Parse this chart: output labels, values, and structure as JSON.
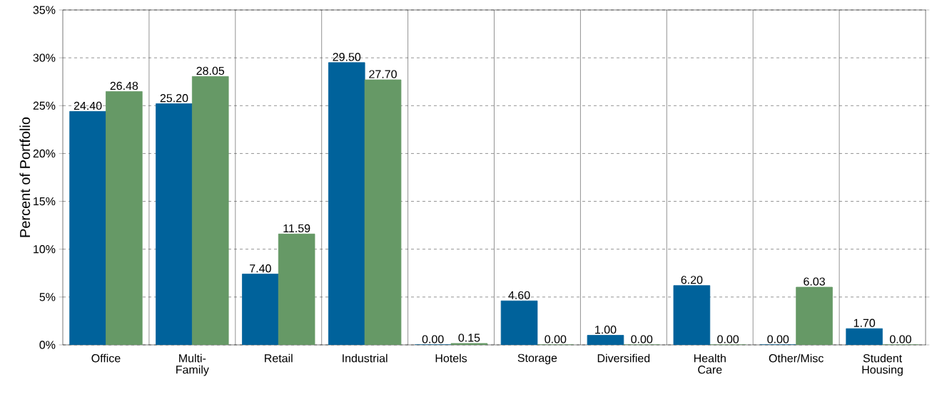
{
  "chart_data": {
    "type": "bar",
    "ylabel": "Percent of Portfolio",
    "categories": [
      "Office",
      "Multi-Family",
      "Retail",
      "Industrial",
      "Hotels",
      "Storage",
      "Diversified",
      "Health Care",
      "Other/Misc",
      "Student Housing"
    ],
    "series": [
      {
        "color": "#00629b",
        "values": [
          24.4,
          25.2,
          7.4,
          29.5,
          0.0,
          4.6,
          1.0,
          6.2,
          0.0,
          1.7
        ],
        "value_labels": [
          "24.40",
          "25.20",
          "7.40",
          "29.50",
          "0.00",
          "4.60",
          "1.00",
          "6.20",
          "0.00",
          "1.70"
        ]
      },
      {
        "color": "#669966",
        "values": [
          26.48,
          28.05,
          11.59,
          27.7,
          0.15,
          0.0,
          0.0,
          0.0,
          6.03,
          0.0
        ],
        "value_labels": [
          "26.48",
          "28.05",
          "11.59",
          "27.70",
          "0.15",
          "0.00",
          "0.00",
          "0.00",
          "6.03",
          "0.00"
        ]
      }
    ],
    "ylim": [
      0,
      35
    ],
    "yticks": [
      {
        "value": 0,
        "label": "0%"
      },
      {
        "value": 5,
        "label": "5%"
      },
      {
        "value": 10,
        "label": "10%"
      },
      {
        "value": 15,
        "label": "15%"
      },
      {
        "value": 20,
        "label": "20%"
      },
      {
        "value": 25,
        "label": "25%"
      },
      {
        "value": 30,
        "label": "30%"
      },
      {
        "value": 35,
        "label": "35%"
      }
    ],
    "grid": true
  }
}
